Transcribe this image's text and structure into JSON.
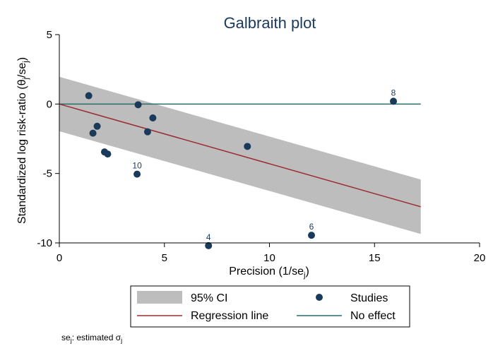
{
  "chart_data": {
    "type": "scatter",
    "title": "Galbraith plot",
    "xlabel": {
      "main": "Precision (1/se",
      "sub": "j",
      "close": ")"
    },
    "ylabel": {
      "prefix": "Standardized log risk-ratio (θ",
      "sub1": "j",
      "mid": "/se",
      "sub2": "j",
      "close": ")"
    },
    "xlim": [
      0,
      20
    ],
    "ylim": [
      -10,
      5
    ],
    "xticks": [
      0,
      5,
      10,
      15,
      20
    ],
    "yticks": [
      5,
      0,
      -5,
      -10
    ],
    "x_tick_labels": [
      "0",
      "5",
      "10",
      "15",
      "20"
    ],
    "y_tick_labels": [
      "5",
      "0",
      "-5",
      "-10"
    ],
    "ci_band": {
      "x_start": 0,
      "x_end": 17.2,
      "half_width": 1.96
    },
    "regression_line": {
      "intercept": 0,
      "slope": -0.43,
      "x_end": 17.2
    },
    "no_effect_line": {
      "y": 0,
      "x_end": 17.2
    },
    "studies": [
      {
        "x": 1.4,
        "y": 0.6,
        "label": ""
      },
      {
        "x": 1.6,
        "y": -2.1,
        "label": ""
      },
      {
        "x": 1.8,
        "y": -1.6,
        "label": ""
      },
      {
        "x": 2.15,
        "y": -3.45,
        "label": ""
      },
      {
        "x": 2.3,
        "y": -3.6,
        "label": ""
      },
      {
        "x": 3.75,
        "y": -0.05,
        "label": ""
      },
      {
        "x": 3.7,
        "y": -5.05,
        "label": "10"
      },
      {
        "x": 4.2,
        "y": -2.0,
        "label": ""
      },
      {
        "x": 4.45,
        "y": -1.0,
        "label": ""
      },
      {
        "x": 7.1,
        "y": -10.2,
        "label": "4"
      },
      {
        "x": 8.95,
        "y": -3.05,
        "label": ""
      },
      {
        "x": 12.0,
        "y": -9.45,
        "label": "6"
      },
      {
        "x": 15.9,
        "y": 0.2,
        "label": "8"
      }
    ],
    "legend": [
      {
        "key": "ci",
        "label": "95% CI"
      },
      {
        "key": "studies",
        "label": "Studies"
      },
      {
        "key": "regression",
        "label": "Regression line"
      },
      {
        "key": "noeffect",
        "label": "No effect"
      }
    ],
    "note": {
      "pre": "se",
      "sub1": "j",
      "mid": ": estimated σ",
      "sub2": "j"
    },
    "colors": {
      "ci_band": "#bdbdbd",
      "points": "#1a3a5c",
      "regression": "#9b2c32",
      "no_effect": "#2a6b6b",
      "title": "#1a3a5c"
    }
  }
}
